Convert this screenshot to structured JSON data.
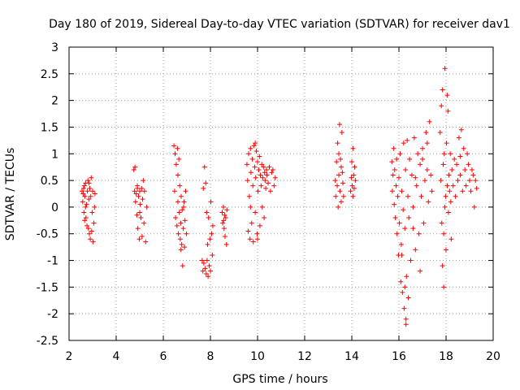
{
  "chart_data": {
    "type": "scatter",
    "title": "Day 180 of 2019, Sidereal Day-to-day VTEC variation (SDTVAR) for receiver dav1",
    "xlabel": "GPS time / hours",
    "ylabel": "SDTVAR / TECUs",
    "xlim": [
      2,
      20
    ],
    "ylim": [
      -2.5,
      3
    ],
    "xticks": [
      2,
      4,
      6,
      8,
      10,
      12,
      14,
      16,
      18,
      20
    ],
    "yticks": [
      -2.5,
      -2,
      -1.5,
      -1,
      -0.5,
      0,
      0.5,
      1,
      1.5,
      2,
      2.5,
      3
    ],
    "xtick_labels": [
      "2",
      "4",
      "6",
      "8",
      "10",
      "12",
      "14",
      "16",
      "18",
      "20"
    ],
    "ytick_labels": [
      "-2.5",
      "-2",
      "-1.5",
      "-1",
      "-0.5",
      "0",
      "0.5",
      "1",
      "1.5",
      "2",
      "2.5",
      "3"
    ],
    "grid": true,
    "marker": "+",
    "series": [
      {
        "name": "SDTVAR",
        "color": "#ff0000",
        "points": [
          [
            2.55,
            0.3
          ],
          [
            2.58,
            0.1
          ],
          [
            2.6,
            0.25
          ],
          [
            2.62,
            0.35
          ],
          [
            2.63,
            -0.1
          ],
          [
            2.65,
            0.4
          ],
          [
            2.67,
            0.2
          ],
          [
            2.7,
            0.45
          ],
          [
            2.72,
            -0.2
          ],
          [
            2.74,
            0.05
          ],
          [
            2.76,
            -0.35
          ],
          [
            2.78,
            0.3
          ],
          [
            2.8,
            0.5
          ],
          [
            2.82,
            -0.4
          ],
          [
            2.84,
            0.15
          ],
          [
            2.86,
            -0.5
          ],
          [
            2.88,
            0.35
          ],
          [
            2.9,
            -0.6
          ],
          [
            2.92,
            0.2
          ],
          [
            2.94,
            0.55
          ],
          [
            2.96,
            -0.45
          ],
          [
            2.98,
            -0.1
          ],
          [
            3.0,
            0.3
          ],
          [
            3.02,
            -0.65
          ],
          [
            3.05,
            -0.3
          ],
          [
            3.08,
            0.0
          ],
          [
            3.1,
            0.25
          ],
          [
            2.66,
            -0.25
          ],
          [
            2.7,
            0.0
          ],
          [
            2.85,
            0.45
          ],
          [
            4.75,
            0.7
          ],
          [
            4.78,
            0.3
          ],
          [
            4.8,
            0.75
          ],
          [
            4.82,
            0.1
          ],
          [
            4.85,
            0.25
          ],
          [
            4.88,
            -0.15
          ],
          [
            4.9,
            0.35
          ],
          [
            4.92,
            -0.4
          ],
          [
            4.95,
            0.2
          ],
          [
            4.98,
            -0.6
          ],
          [
            5.0,
            0.3
          ],
          [
            5.02,
            0.05
          ],
          [
            5.05,
            -0.2
          ],
          [
            5.08,
            0.35
          ],
          [
            5.1,
            -0.55
          ],
          [
            5.12,
            0.15
          ],
          [
            5.15,
            0.5
          ],
          [
            5.18,
            -0.3
          ],
          [
            5.2,
            0.3
          ],
          [
            5.25,
            -0.65
          ],
          [
            5.3,
            0.0
          ],
          [
            4.9,
            0.4
          ],
          [
            5.0,
            -0.1
          ],
          [
            6.45,
            1.15
          ],
          [
            6.48,
            0.3
          ],
          [
            6.5,
            1.0
          ],
          [
            6.52,
            -0.2
          ],
          [
            6.55,
            0.8
          ],
          [
            6.58,
            -0.35
          ],
          [
            6.6,
            1.1
          ],
          [
            6.62,
            0.1
          ],
          [
            6.64,
            -0.5
          ],
          [
            6.66,
            0.9
          ],
          [
            6.68,
            -0.1
          ],
          [
            6.7,
            0.4
          ],
          [
            6.72,
            -0.6
          ],
          [
            6.74,
            -0.3
          ],
          [
            6.76,
            0.2
          ],
          [
            6.78,
            -0.7
          ],
          [
            6.8,
            -0.05
          ],
          [
            6.82,
            -1.1
          ],
          [
            6.85,
            -0.4
          ],
          [
            6.88,
            0.1
          ],
          [
            6.9,
            -0.75
          ],
          [
            6.92,
            -0.25
          ],
          [
            6.95,
            0.3
          ],
          [
            6.98,
            -0.5
          ],
          [
            6.62,
            0.6
          ],
          [
            6.75,
            -0.8
          ],
          [
            6.86,
            0.0
          ],
          [
            7.65,
            -1.0
          ],
          [
            7.68,
            -1.2
          ],
          [
            7.7,
            0.35
          ],
          [
            7.72,
            -1.05
          ],
          [
            7.75,
            0.75
          ],
          [
            7.78,
            -1.15
          ],
          [
            7.8,
            0.45
          ],
          [
            7.82,
            -1.25
          ],
          [
            7.84,
            -0.1
          ],
          [
            7.86,
            -1.0
          ],
          [
            7.88,
            -0.7
          ],
          [
            7.9,
            -1.3
          ],
          [
            7.92,
            -0.2
          ],
          [
            7.95,
            -1.1
          ],
          [
            7.98,
            -0.6
          ],
          [
            8.0,
            -1.2
          ],
          [
            8.02,
            0.1
          ],
          [
            8.05,
            -0.5
          ],
          [
            8.08,
            -0.9
          ],
          [
            8.1,
            -0.35
          ],
          [
            8.5,
            -0.1
          ],
          [
            8.52,
            -0.3
          ],
          [
            8.55,
            0.0
          ],
          [
            8.58,
            -0.4
          ],
          [
            8.6,
            -0.15
          ],
          [
            8.62,
            -0.55
          ],
          [
            8.65,
            -0.2
          ],
          [
            8.68,
            -0.7
          ],
          [
            8.7,
            -0.05
          ],
          [
            8.56,
            -0.25
          ],
          [
            9.55,
            0.8
          ],
          [
            9.58,
            0.5
          ],
          [
            9.6,
            -0.45
          ],
          [
            9.62,
            1.0
          ],
          [
            9.65,
            0.2
          ],
          [
            9.68,
            -0.6
          ],
          [
            9.7,
            1.1
          ],
          [
            9.72,
            0.65
          ],
          [
            9.75,
            -0.3
          ],
          [
            9.78,
            0.9
          ],
          [
            9.8,
            0.4
          ],
          [
            9.82,
            -0.65
          ],
          [
            9.85,
            1.15
          ],
          [
            9.88,
            0.75
          ],
          [
            9.9,
            -0.1
          ],
          [
            9.92,
            0.55
          ],
          [
            9.95,
            1.05
          ],
          [
            9.98,
            -0.5
          ],
          [
            10.0,
            0.85
          ],
          [
            10.02,
            0.3
          ],
          [
            10.05,
            0.7
          ],
          [
            10.08,
            0.95
          ],
          [
            10.1,
            -0.35
          ],
          [
            10.12,
            0.6
          ],
          [
            10.15,
            0.4
          ],
          [
            10.18,
            0.8
          ],
          [
            10.2,
            0.0
          ],
          [
            10.22,
            0.55
          ],
          [
            10.25,
            0.75
          ],
          [
            10.28,
            -0.2
          ],
          [
            10.3,
            0.65
          ],
          [
            10.32,
            0.5
          ],
          [
            10.35,
            0.35
          ],
          [
            10.38,
            0.7
          ],
          [
            10.4,
            0.6
          ],
          [
            10.45,
            0.45
          ],
          [
            10.5,
            0.75
          ],
          [
            10.55,
            0.3
          ],
          [
            10.6,
            0.65
          ],
          [
            10.65,
            0.7
          ],
          [
            10.7,
            0.4
          ],
          [
            10.75,
            0.55
          ],
          [
            9.7,
            0.0
          ],
          [
            9.9,
            1.2
          ],
          [
            10.0,
            -0.6
          ],
          [
            13.3,
            0.5
          ],
          [
            13.32,
            0.2
          ],
          [
            13.35,
            0.85
          ],
          [
            13.38,
            0.4
          ],
          [
            13.4,
            1.2
          ],
          [
            13.42,
            0.0
          ],
          [
            13.45,
            0.6
          ],
          [
            13.48,
            1.55
          ],
          [
            13.5,
            0.3
          ],
          [
            13.52,
            0.9
          ],
          [
            13.55,
            0.1
          ],
          [
            13.58,
            1.4
          ],
          [
            13.6,
            0.65
          ],
          [
            13.62,
            0.45
          ],
          [
            13.65,
            0.2
          ],
          [
            13.45,
            1.0
          ],
          [
            13.55,
            0.75
          ],
          [
            13.95,
            0.3
          ],
          [
            13.98,
            0.55
          ],
          [
            14.0,
            0.85
          ],
          [
            14.02,
            0.4
          ],
          [
            14.05,
            1.1
          ],
          [
            14.08,
            0.6
          ],
          [
            14.1,
            0.35
          ],
          [
            14.12,
            0.75
          ],
          [
            14.15,
            0.5
          ],
          [
            14.05,
            0.2
          ],
          [
            15.7,
            0.85
          ],
          [
            15.72,
            0.3
          ],
          [
            15.75,
            0.6
          ],
          [
            15.78,
            1.1
          ],
          [
            15.8,
            0.05
          ],
          [
            15.82,
            0.7
          ],
          [
            15.85,
            -0.2
          ],
          [
            15.88,
            0.4
          ],
          [
            15.9,
            0.9
          ],
          [
            15.92,
            -0.5
          ],
          [
            15.95,
            0.2
          ],
          [
            15.98,
            -0.9
          ],
          [
            16.0,
            0.55
          ],
          [
            16.02,
            -0.3
          ],
          [
            16.05,
            1.0
          ],
          [
            16.08,
            -1.4
          ],
          [
            16.1,
            -0.7
          ],
          [
            16.12,
            0.3
          ],
          [
            16.15,
            -1.6
          ],
          [
            16.18,
            -0.05
          ],
          [
            16.2,
            1.2
          ],
          [
            16.22,
            -1.9
          ],
          [
            16.25,
            -0.4
          ],
          [
            16.28,
            0.7
          ],
          [
            16.3,
            -2.2
          ],
          [
            16.32,
            -1.3
          ],
          [
            16.35,
            1.25
          ],
          [
            16.38,
            0.2
          ],
          [
            16.4,
            -1.7
          ],
          [
            16.42,
            -0.2
          ],
          [
            16.45,
            0.9
          ],
          [
            16.5,
            -1.0
          ],
          [
            16.55,
            0.6
          ],
          [
            16.6,
            -0.4
          ],
          [
            16.65,
            1.3
          ],
          [
            16.7,
            -0.8
          ],
          [
            16.75,
            0.4
          ],
          [
            16.8,
            1.0
          ],
          [
            16.85,
            -0.5
          ],
          [
            16.9,
            0.8
          ],
          [
            16.95,
            0.2
          ],
          [
            17.0,
            1.1
          ],
          [
            17.05,
            -0.3
          ],
          [
            17.1,
            0.5
          ],
          [
            17.15,
            1.4
          ],
          [
            17.2,
            0.7
          ],
          [
            17.25,
            0.1
          ],
          [
            17.3,
            1.6
          ],
          [
            17.35,
            0.6
          ],
          [
            17.4,
            0.3
          ],
          [
            16.3,
            -2.1
          ],
          [
            16.25,
            -1.5
          ],
          [
            16.9,
            -1.2
          ],
          [
            17.0,
            0.9
          ],
          [
            17.2,
            1.2
          ],
          [
            16.12,
            -0.9
          ],
          [
            16.6,
            0.0
          ],
          [
            16.7,
            0.55
          ],
          [
            17.75,
            1.4
          ],
          [
            17.78,
            0.5
          ],
          [
            17.8,
            1.9
          ],
          [
            17.82,
            -0.3
          ],
          [
            17.85,
            2.2
          ],
          [
            17.88,
            0.8
          ],
          [
            17.9,
            -1.5
          ],
          [
            17.92,
            1.0
          ],
          [
            17.95,
            2.6
          ],
          [
            17.98,
            0.2
          ],
          [
            18.0,
            -0.8
          ],
          [
            18.02,
            1.2
          ],
          [
            18.05,
            0.4
          ],
          [
            18.08,
            1.8
          ],
          [
            18.1,
            -0.1
          ],
          [
            18.12,
            0.6
          ],
          [
            18.15,
            0.3
          ],
          [
            18.18,
            1.0
          ],
          [
            18.2,
            0.1
          ],
          [
            18.22,
            -0.6
          ],
          [
            18.25,
            0.7
          ],
          [
            18.3,
            0.4
          ],
          [
            18.35,
            0.9
          ],
          [
            18.4,
            0.2
          ],
          [
            18.45,
            0.8
          ],
          [
            18.5,
            0.5
          ],
          [
            18.55,
            1.3
          ],
          [
            18.6,
            0.6
          ],
          [
            18.65,
            1.45
          ],
          [
            18.7,
            0.3
          ],
          [
            18.75,
            1.1
          ],
          [
            18.8,
            0.7
          ],
          [
            18.85,
            0.4
          ],
          [
            18.9,
            1.0
          ],
          [
            18.95,
            0.8
          ],
          [
            19.0,
            0.5
          ],
          [
            19.05,
            0.3
          ],
          [
            19.1,
            0.7
          ],
          [
            19.15,
            0.6
          ],
          [
            19.2,
            0.0
          ],
          [
            19.25,
            0.5
          ],
          [
            19.3,
            0.35
          ],
          [
            17.85,
            -1.1
          ],
          [
            17.9,
            -0.5
          ],
          [
            18.05,
            2.1
          ],
          [
            17.95,
            0.0
          ],
          [
            18.6,
            0.95
          ]
        ]
      }
    ]
  }
}
